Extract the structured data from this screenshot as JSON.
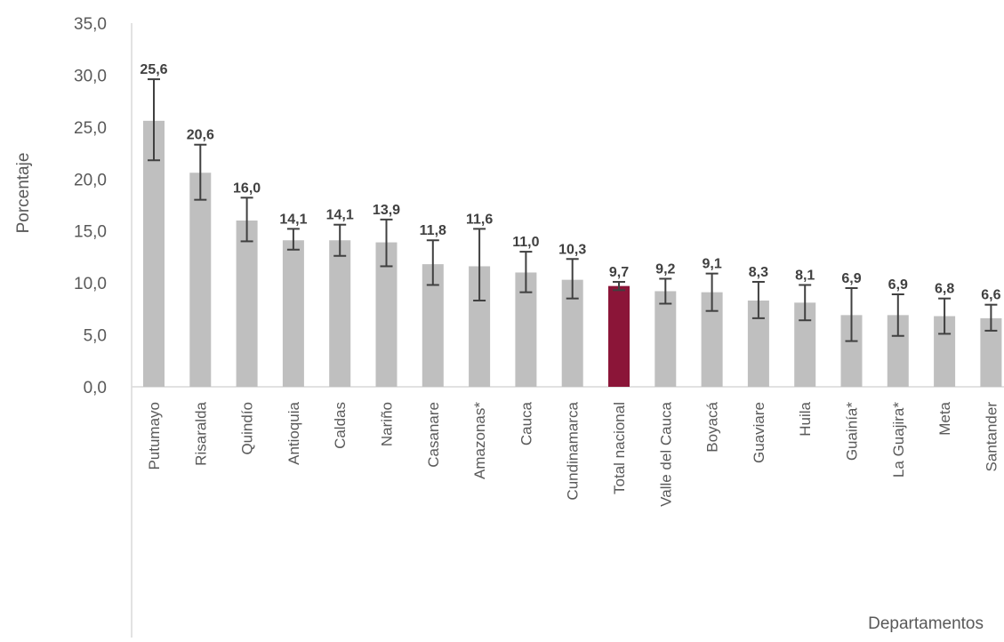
{
  "chart_data": {
    "type": "bar",
    "title": "",
    "ylabel": "Porcentaje",
    "xlabel": "Departamentos",
    "ylim": [
      0,
      35
    ],
    "yticks": [
      "0,0",
      "5,0",
      "10,0",
      "15,0",
      "20,0",
      "25,0",
      "30,0",
      "35,0"
    ],
    "grid": false,
    "legend": "none",
    "colors": {
      "default_bar": "#bfbfbf",
      "highlight_bar": "#8b1538",
      "error_bar": "#404040",
      "axis": "#d9d9d9"
    },
    "categories": [
      "Putumayo",
      "Risaralda",
      "Quindío",
      "Antioquia",
      "Caldas",
      "Nariño",
      "Casanare",
      "Amazonas*",
      "Cauca",
      "Cundinamarca",
      "Total nacional",
      "Valle del Cauca",
      "Boyacá",
      "Guaviare",
      "Huila",
      "Guainía*",
      "La Guajira*",
      "Meta",
      "Santander"
    ],
    "values": [
      25.6,
      20.6,
      16.0,
      14.1,
      14.1,
      13.9,
      11.8,
      11.6,
      11.0,
      10.3,
      9.7,
      9.2,
      9.1,
      8.3,
      8.1,
      6.9,
      6.9,
      6.8,
      6.6
    ],
    "data_labels": [
      "25,6",
      "20,6",
      "16,0",
      "14,1",
      "14,1",
      "13,9",
      "11,8",
      "11,6",
      "11,0",
      "10,3",
      "9,7",
      "9,2",
      "9,1",
      "8,3",
      "8,1",
      "6,9",
      "6,9",
      "6,8",
      "6,6"
    ],
    "error_low": [
      21.8,
      18.0,
      14.0,
      13.2,
      12.6,
      11.6,
      9.8,
      8.3,
      9.1,
      8.5,
      9.3,
      8.0,
      7.3,
      6.6,
      6.4,
      4.4,
      4.9,
      5.1,
      5.4
    ],
    "error_high": [
      29.6,
      23.3,
      18.2,
      15.2,
      15.6,
      16.1,
      14.1,
      15.2,
      13.0,
      12.3,
      10.1,
      10.4,
      10.9,
      10.1,
      9.8,
      9.5,
      8.9,
      8.5,
      7.9
    ],
    "highlight": "Total nacional"
  }
}
